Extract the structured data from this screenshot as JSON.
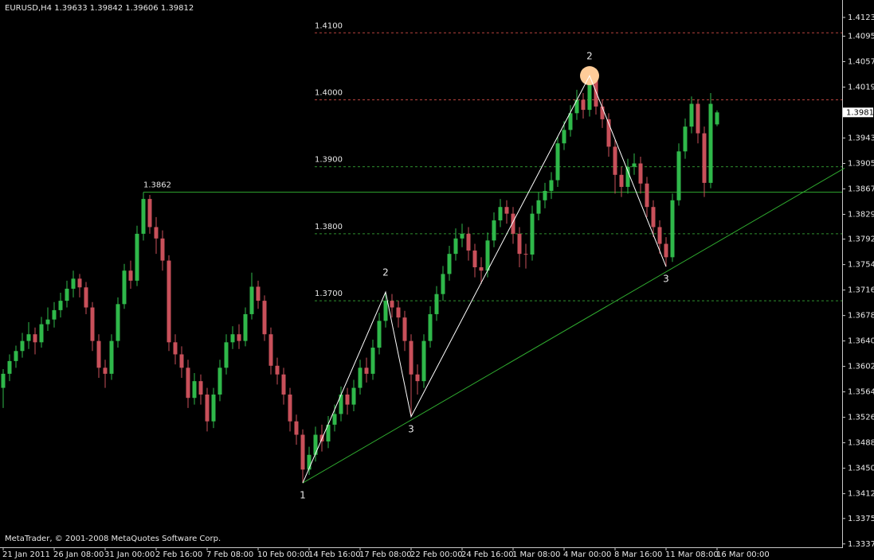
{
  "chart_data": {
    "type": "candlestick",
    "title": "EURUSD,H4",
    "watermark": "MetaTrader, © 2001-2008 MetaQuotes Software Corp.",
    "categories": [
      "21 Jan 2011",
      null,
      null,
      null,
      null,
      null,
      null,
      null,
      "26 Jan 08:00",
      null,
      null,
      null,
      null,
      null,
      null,
      null,
      "31 Jan 00:00",
      null,
      null,
      null,
      null,
      null,
      null,
      null,
      "2 Feb 16:00",
      null,
      null,
      null,
      null,
      null,
      null,
      null,
      "7 Feb 08:00",
      null,
      null,
      null,
      null,
      null,
      null,
      null,
      "10 Feb 00:00",
      null,
      null,
      null,
      null,
      null,
      null,
      null,
      "14 Feb 16:00",
      null,
      null,
      null,
      null,
      null,
      null,
      null,
      "17 Feb 08:00",
      null,
      null,
      null,
      null,
      null,
      null,
      null,
      "22 Feb 00:00",
      null,
      null,
      null,
      null,
      null,
      null,
      null,
      "24 Feb 16:00",
      null,
      null,
      null,
      null,
      null,
      null,
      null,
      "1 Mar 08:00",
      null,
      null,
      null,
      null,
      null,
      null,
      null,
      "4 Mar 00:00",
      null,
      null,
      null,
      null,
      null,
      null,
      null,
      "8 Mar 16:00",
      null,
      null,
      null,
      null,
      null,
      null,
      null,
      "11 Mar 08:00",
      null,
      null,
      null,
      null,
      null,
      null,
      null,
      "16 Mar 00:00"
    ],
    "open": [
      1.357,
      1.3591,
      1.361,
      1.3625,
      1.364,
      1.365,
      1.3638,
      1.3665,
      1.3672,
      1.3686,
      1.37,
      1.3718,
      1.3733,
      1.372,
      1.369,
      1.364,
      1.36,
      1.3591,
      1.364,
      1.3695,
      1.3745,
      1.373,
      1.38,
      1.3852,
      1.381,
      1.3793,
      1.376,
      1.3638,
      1.362,
      1.36,
      1.3555,
      1.358,
      1.356,
      1.352,
      1.356,
      1.36,
      1.3638,
      1.365,
      1.364,
      1.368,
      1.3721,
      1.37,
      1.365,
      1.3603,
      1.359,
      1.356,
      1.352,
      1.35,
      1.3448,
      1.347,
      1.35,
      1.349,
      1.3515,
      1.3531,
      1.356,
      1.3545,
      1.357,
      1.36,
      1.3591,
      1.363,
      1.367,
      1.37,
      1.369,
      1.3675,
      1.364,
      1.359,
      1.358,
      1.364,
      1.368,
      1.371,
      1.374,
      1.377,
      1.3793,
      1.38,
      1.3775,
      1.375,
      1.3745,
      1.379,
      1.382,
      1.384,
      1.383,
      1.38,
      1.377,
      1.3769,
      1.383,
      1.385,
      1.3864,
      1.388,
      1.3935,
      1.3955,
      1.398,
      1.4,
      1.3985,
      1.403,
      1.399,
      1.3971,
      1.393,
      1.3888,
      1.387,
      1.39,
      1.3905,
      1.3875,
      1.384,
      1.381,
      1.3785,
      1.3765,
      1.385,
      1.3923,
      1.396,
      1.3994,
      1.395,
      1.3876,
      1.39633
    ],
    "high": [
      1.3598,
      1.362,
      1.3633,
      1.3652,
      1.3668,
      1.366,
      1.3676,
      1.369,
      1.3698,
      1.3712,
      1.373,
      1.3745,
      1.374,
      1.3728,
      1.3698,
      1.365,
      1.3612,
      1.365,
      1.3705,
      1.3755,
      1.376,
      1.3812,
      1.3862,
      1.3858,
      1.3825,
      1.3805,
      1.3768,
      1.365,
      1.3632,
      1.3612,
      1.3592,
      1.359,
      1.357,
      1.357,
      1.3612,
      1.365,
      1.3662,
      1.3665,
      1.369,
      1.3742,
      1.373,
      1.3708,
      1.366,
      1.3615,
      1.36,
      1.357,
      1.353,
      1.3508,
      1.3482,
      1.3512,
      1.3515,
      1.3528,
      1.3545,
      1.3572,
      1.357,
      1.3582,
      1.3612,
      1.3615,
      1.3642,
      1.3682,
      1.3713,
      1.371,
      1.37,
      1.3685,
      1.365,
      1.3605,
      1.365,
      1.3692,
      1.3722,
      1.3752,
      1.3782,
      1.3808,
      1.3815,
      1.381,
      1.3785,
      1.3765,
      1.3802,
      1.3832,
      1.3852,
      1.385,
      1.384,
      1.381,
      1.3785,
      1.3842,
      1.3862,
      1.3876,
      1.3892,
      1.3945,
      1.3968,
      1.3992,
      1.4015,
      1.401,
      1.4036,
      1.4035,
      1.4,
      1.398,
      1.394,
      1.39,
      1.3912,
      1.392,
      1.3915,
      1.3885,
      1.385,
      1.382,
      1.3795,
      1.386,
      1.3935,
      1.3972,
      1.4005,
      1.4,
      1.396,
      1.401,
      1.39842
    ],
    "low": [
      1.354,
      1.358,
      1.36,
      1.3615,
      1.3628,
      1.362,
      1.363,
      1.3655,
      1.366,
      1.3675,
      1.369,
      1.3705,
      1.3705,
      1.368,
      1.3625,
      1.3585,
      1.357,
      1.3582,
      1.363,
      1.3688,
      1.3718,
      1.3722,
      1.379,
      1.38,
      1.377,
      1.3745,
      1.3625,
      1.3605,
      1.3585,
      1.354,
      1.3545,
      1.3545,
      1.3505,
      1.351,
      1.355,
      1.359,
      1.3628,
      1.3628,
      1.3632,
      1.3672,
      1.3688,
      1.364,
      1.359,
      1.3575,
      1.3545,
      1.3505,
      1.3485,
      1.3428,
      1.344,
      1.346,
      1.3475,
      1.348,
      1.3505,
      1.352,
      1.353,
      1.3535,
      1.356,
      1.3578,
      1.3582,
      1.362,
      1.366,
      1.3675,
      1.366,
      1.3625,
      1.3527,
      1.356,
      1.357,
      1.363,
      1.367,
      1.37,
      1.373,
      1.376,
      1.378,
      1.376,
      1.3735,
      1.3725,
      1.3735,
      1.378,
      1.381,
      1.3815,
      1.3785,
      1.375,
      1.3748,
      1.376,
      1.382,
      1.3838,
      1.3852,
      1.387,
      1.3925,
      1.3945,
      1.397,
      1.3972,
      1.3975,
      1.3978,
      1.3958,
      1.3915,
      1.386,
      1.3855,
      1.386,
      1.3888,
      1.386,
      1.3825,
      1.3795,
      1.377,
      1.3751,
      1.3758,
      1.3842,
      1.3912,
      1.395,
      1.3935,
      1.3855,
      1.3868,
      1.39606
    ],
    "close": [
      1.3591,
      1.361,
      1.3625,
      1.364,
      1.365,
      1.3638,
      1.3665,
      1.3672,
      1.3686,
      1.37,
      1.3718,
      1.3733,
      1.372,
      1.369,
      1.364,
      1.36,
      1.3591,
      1.364,
      1.3695,
      1.3745,
      1.373,
      1.38,
      1.3852,
      1.381,
      1.3793,
      1.376,
      1.3638,
      1.362,
      1.36,
      1.3555,
      1.358,
      1.356,
      1.352,
      1.356,
      1.36,
      1.3638,
      1.365,
      1.364,
      1.368,
      1.3721,
      1.37,
      1.365,
      1.3603,
      1.359,
      1.356,
      1.352,
      1.35,
      1.3448,
      1.347,
      1.35,
      1.349,
      1.3515,
      1.3531,
      1.356,
      1.3545,
      1.357,
      1.36,
      1.3591,
      1.363,
      1.367,
      1.37,
      1.369,
      1.3675,
      1.364,
      1.359,
      1.358,
      1.364,
      1.368,
      1.371,
      1.374,
      1.377,
      1.3793,
      1.38,
      1.3775,
      1.375,
      1.3745,
      1.379,
      1.382,
      1.384,
      1.383,
      1.38,
      1.377,
      1.3769,
      1.383,
      1.385,
      1.3864,
      1.388,
      1.3935,
      1.3955,
      1.398,
      1.4,
      1.3985,
      1.403,
      1.399,
      1.3971,
      1.393,
      1.3888,
      1.387,
      1.39,
      1.3905,
      1.3875,
      1.384,
      1.381,
      1.3785,
      1.3765,
      1.385,
      1.3923,
      1.396,
      1.3994,
      1.395,
      1.3876,
      1.3994,
      1.39812
    ],
    "up_color": "#2fb84a",
    "down_color": "#c8505a",
    "ylim": [
      1.3332,
      1.4149
    ],
    "yticks": [
      {
        "value": 1.4123,
        "label": "1.41230"
      },
      {
        "value": 1.4095,
        "label": "1.40950"
      },
      {
        "value": 1.4057,
        "label": "1.40570"
      },
      {
        "value": 1.4019,
        "label": "1.40190"
      },
      {
        "value": 1.3943,
        "label": "1.39430"
      },
      {
        "value": 1.3905,
        "label": "1.39050"
      },
      {
        "value": 1.3867,
        "label": "1.38670"
      },
      {
        "value": 1.3829,
        "label": "1.38290"
      },
      {
        "value": 1.3792,
        "label": "1.37920"
      },
      {
        "value": 1.3754,
        "label": "1.37540"
      },
      {
        "value": 1.3716,
        "label": "1.37160"
      },
      {
        "value": 1.3678,
        "label": "1.36780"
      },
      {
        "value": 1.364,
        "label": "1.36400"
      },
      {
        "value": 1.3602,
        "label": "1.36020"
      },
      {
        "value": 1.3564,
        "label": "1.35640"
      },
      {
        "value": 1.3526,
        "label": "1.35260"
      },
      {
        "value": 1.3488,
        "label": "1.34880"
      },
      {
        "value": 1.345,
        "label": "1.34500"
      },
      {
        "value": 1.3412,
        "label": "1.34120"
      },
      {
        "value": 1.3375,
        "label": "1.33750"
      },
      {
        "value": 1.3337,
        "label": "1.33370"
      }
    ],
    "levels": [
      {
        "value": 1.41,
        "label": "1.4100",
        "color": "#b8433e"
      },
      {
        "value": 1.4,
        "label": "1.4000",
        "color": "#b8433e"
      },
      {
        "value": 1.39,
        "label": "1.3900",
        "color": "#2f8f2f"
      },
      {
        "value": 1.38,
        "label": "1.3800",
        "color": "#2f8f2f"
      },
      {
        "value": 1.37,
        "label": "1.3700",
        "color": "#2f8f2f"
      }
    ],
    "resistance": {
      "value": 1.3862,
      "color": "#2faa2f"
    },
    "trendline": {
      "x": [
        47,
        132
      ],
      "y": [
        1.3428,
        1.3898
      ],
      "color": "#2faa2f"
    },
    "zigzag": {
      "x": [
        47,
        60,
        64,
        92,
        104
      ],
      "y": [
        1.3428,
        1.3713,
        1.3527,
        1.4036,
        1.3751
      ],
      "labels": [
        "1",
        "2",
        "3",
        "2",
        "3"
      ],
      "color": "#ffffff",
      "highlight_point": 3,
      "highlight_color": "#ffcc99"
    }
  }
}
